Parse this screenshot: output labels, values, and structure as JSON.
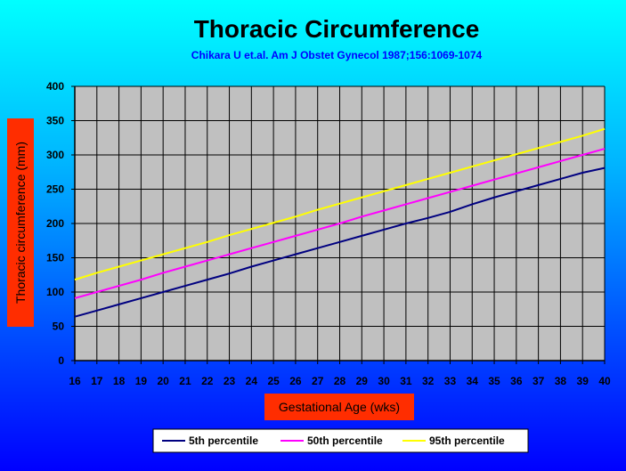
{
  "chart_data": {
    "type": "line",
    "title": "Thoracic Circumference",
    "subtitle": "Chikara U et.al. Am J Obstet Gynecol 1987;156:1069-1074",
    "xlabel": "Gestational Age (wks)",
    "ylabel": "Thoracic circumference (mm)",
    "x": [
      16,
      17,
      18,
      19,
      20,
      21,
      22,
      23,
      24,
      25,
      26,
      27,
      28,
      29,
      30,
      31,
      32,
      33,
      34,
      35,
      36,
      37,
      38,
      39,
      40
    ],
    "xlim": [
      16,
      40
    ],
    "ylim": [
      0,
      400
    ],
    "yticks": [
      0,
      50,
      100,
      150,
      200,
      250,
      300,
      350,
      400
    ],
    "grid": true,
    "legend_position": "bottom",
    "plot_background": "#c0c0c0",
    "series": [
      {
        "name": "5th percentile",
        "color": "#000080",
        "values": [
          64,
          73,
          82,
          91,
          100,
          109,
          118,
          127,
          137,
          146,
          155,
          164,
          173,
          182,
          191,
          200,
          208,
          217,
          228,
          238,
          247,
          256,
          265,
          274,
          281
        ]
      },
      {
        "name": "50th percentile",
        "color": "#ff00ff",
        "values": [
          91,
          100,
          109,
          118,
          128,
          137,
          146,
          155,
          164,
          173,
          182,
          191,
          200,
          210,
          219,
          228,
          237,
          246,
          255,
          264,
          273,
          282,
          291,
          300,
          309
        ]
      },
      {
        "name": "95th percentile",
        "color": "#ffff00",
        "values": [
          118,
          128,
          137,
          146,
          155,
          164,
          173,
          183,
          192,
          201,
          210,
          220,
          229,
          238,
          247,
          256,
          265,
          274,
          283,
          292,
          301,
          310,
          319,
          328,
          338
        ]
      }
    ]
  },
  "colors": {
    "label_box": "#ff2d00",
    "title_text": "#000000",
    "subtitle_text": "#0000ff"
  }
}
